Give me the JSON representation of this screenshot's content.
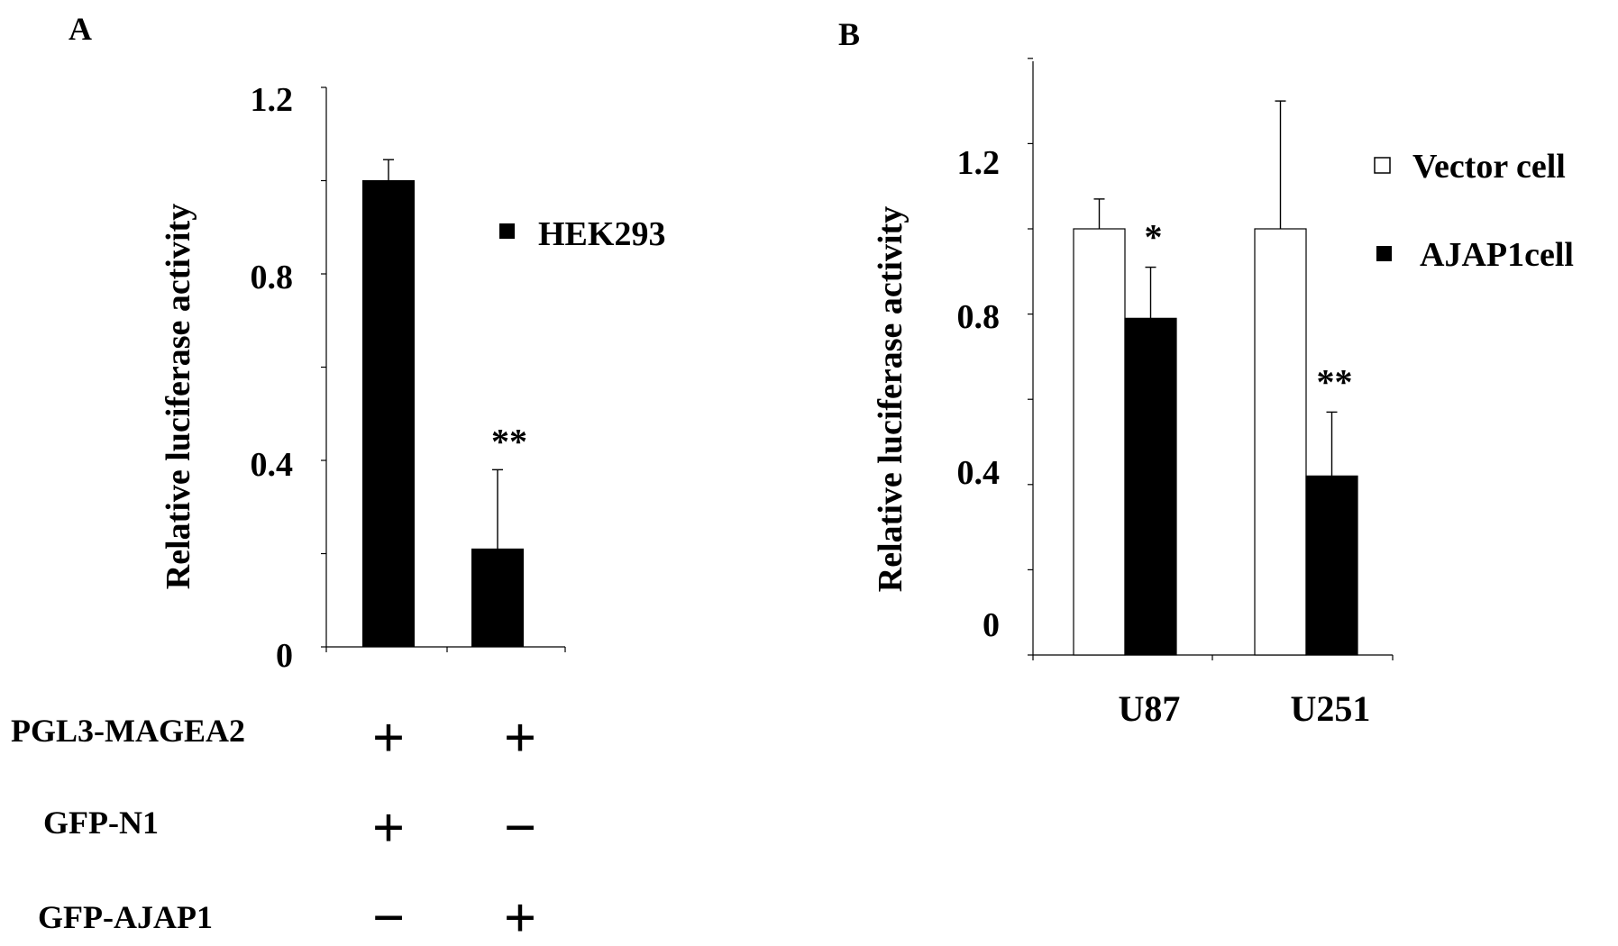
{
  "chart_data": [
    {
      "panel_label": "A",
      "type": "bar",
      "ylabel": "Relative luciferase activity",
      "ylim": [
        0,
        1.2
      ],
      "yticks": [
        "0",
        "0.4",
        "0.8",
        "1.2"
      ],
      "categories": [
        "",
        ""
      ],
      "series": [
        {
          "name": "HEK293",
          "values": [
            1.0,
            0.21
          ],
          "errors": [
            0.045,
            0.17
          ],
          "color": "#000000"
        }
      ],
      "annotations": [
        "",
        "**"
      ],
      "conditions": [
        {
          "label": "PGL3-MAGEA2",
          "marks": [
            "+",
            "+"
          ]
        },
        {
          "label": "GFP-N1",
          "marks": [
            "+",
            "−"
          ]
        },
        {
          "label": "GFP-AJAP1",
          "marks": [
            "−",
            "+"
          ]
        }
      ],
      "legend_position": "top-right"
    },
    {
      "panel_label": "B",
      "type": "bar",
      "ylabel": "Relative luciferase activity",
      "ylim": [
        0,
        1.4
      ],
      "yticks": [
        "0",
        "0.4",
        "0.8",
        "1.2"
      ],
      "categories": [
        "U87",
        "U251"
      ],
      "series": [
        {
          "name": "Vector cell",
          "values": [
            1.0,
            1.0
          ],
          "errors": [
            0.07,
            0.3
          ],
          "color": "#ffffff"
        },
        {
          "name": "AJAP1cell",
          "values": [
            0.79,
            0.42
          ],
          "errors": [
            0.12,
            0.15
          ],
          "color": "#000000"
        }
      ],
      "annotations": [
        "*",
        "**"
      ],
      "legend_position": "top-right"
    }
  ]
}
